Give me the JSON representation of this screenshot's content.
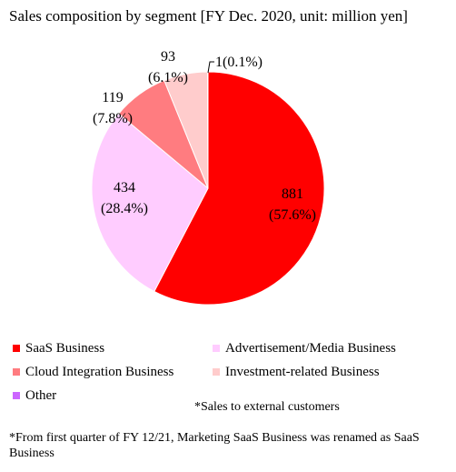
{
  "chart_data": {
    "type": "pie",
    "title": "Sales composition by segment [FY Dec. 2020, unit: million yen]",
    "slices": [
      {
        "name": "SaaS Business",
        "value": 881,
        "percent": "57.6%",
        "label_value": "881",
        "label_percent": "(57.6%)",
        "color": "#ff0000"
      },
      {
        "name": "Advertisement/Media Business",
        "value": 434,
        "percent": "28.4%",
        "label_value": "434",
        "label_percent": "(28.4%)",
        "color": "#ffccff"
      },
      {
        "name": "Cloud Integration Business",
        "value": 119,
        "percent": "7.8%",
        "label_value": "119",
        "label_percent": "(7.8%)",
        "color": "#ff7c80"
      },
      {
        "name": "Investment-related Business",
        "value": 93,
        "percent": "6.1%",
        "label_value": "93",
        "label_percent": "(6.1%)",
        "color": "#ffcccc"
      },
      {
        "name": "Other",
        "value": 1,
        "percent": "0.1%",
        "label_value": "1(0.1%)",
        "label_percent": "",
        "color": "#cc66ff"
      }
    ],
    "legend_position": "bottom"
  },
  "notes": {
    "external_sales": "*Sales to external customers",
    "renamed": "*From first quarter of FY 12/21, Marketing SaaS Business was renamed as SaaS Business"
  }
}
